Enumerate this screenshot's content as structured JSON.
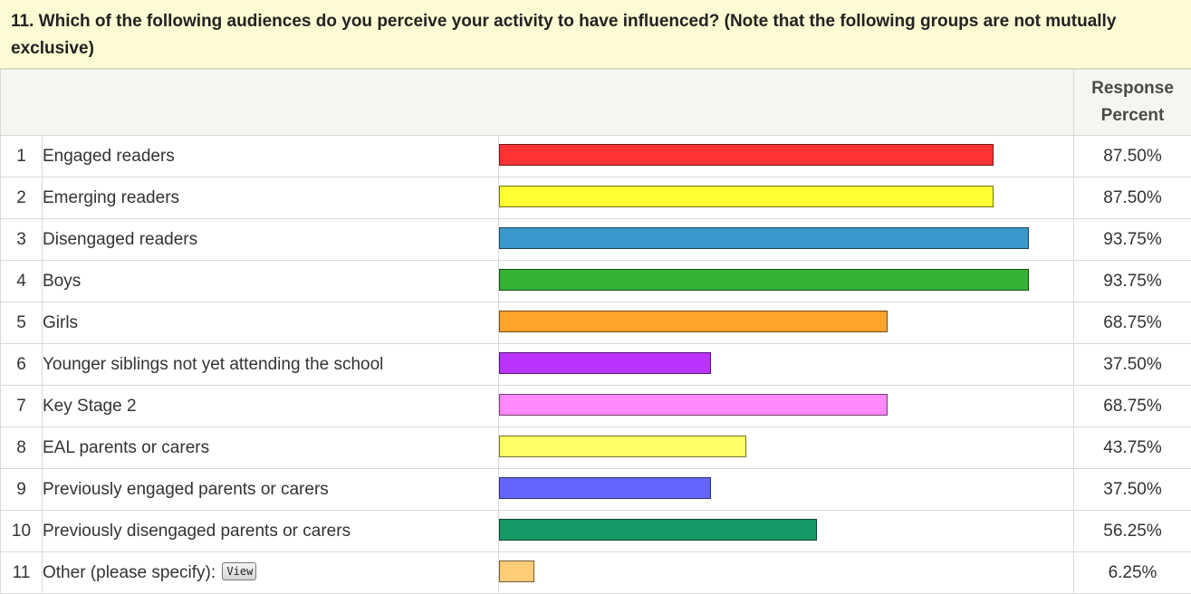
{
  "question": {
    "number": "11.",
    "text": "Which of the following audiences do you perceive your activity to have influenced? (Note that the following groups are not mutually exclusive)"
  },
  "header": {
    "response_percent_line1": "Response",
    "response_percent_line2": "Percent"
  },
  "rows": [
    {
      "index": "1",
      "label": "Engaged readers",
      "percent_text": "87.50%",
      "color": "#ff3333"
    },
    {
      "index": "2",
      "label": "Emerging readers",
      "percent_text": "87.50%",
      "color": "#ffff33"
    },
    {
      "index": "3",
      "label": "Disengaged readers",
      "percent_text": "93.75%",
      "color": "#3a99cc"
    },
    {
      "index": "4",
      "label": "Boys",
      "percent_text": "93.75%",
      "color": "#33b233"
    },
    {
      "index": "5",
      "label": "Girls",
      "percent_text": "68.75%",
      "color": "#ffa42a"
    },
    {
      "index": "6",
      "label": "Younger siblings not yet attending the school",
      "percent_text": "37.50%",
      "color": "#bb33ff"
    },
    {
      "index": "7",
      "label": "Key Stage 2",
      "percent_text": "68.75%",
      "color": "#ff88ff"
    },
    {
      "index": "8",
      "label": "EAL parents or carers",
      "percent_text": "43.75%",
      "color": "#ffff66"
    },
    {
      "index": "9",
      "label": "Previously engaged parents or carers",
      "percent_text": "37.50%",
      "color": "#6666ff"
    },
    {
      "index": "10",
      "label": "Previously disengaged parents or carers",
      "percent_text": "56.25%",
      "color": "#159966"
    },
    {
      "index": "11",
      "label": "Other (please specify):",
      "percent_text": "6.25%",
      "color": "#ffcc77",
      "button_label": "View"
    }
  ],
  "chart_data": {
    "type": "bar",
    "orientation": "horizontal",
    "categories": [
      "Engaged readers",
      "Emerging readers",
      "Disengaged readers",
      "Boys",
      "Girls",
      "Younger siblings not yet attending the school",
      "Key Stage 2",
      "EAL parents or carers",
      "Previously engaged parents or carers",
      "Previously disengaged parents or carers",
      "Other (please specify):"
    ],
    "values": [
      87.5,
      87.5,
      93.75,
      93.75,
      68.75,
      37.5,
      68.75,
      43.75,
      37.5,
      56.25,
      6.25
    ],
    "colors": [
      "#ff3333",
      "#ffff33",
      "#3a99cc",
      "#33b233",
      "#ffa42a",
      "#bb33ff",
      "#ff88ff",
      "#ffff66",
      "#6666ff",
      "#159966",
      "#ffcc77"
    ],
    "title": "",
    "xlabel": "",
    "ylabel": "Response Percent",
    "xlim": [
      0,
      100
    ],
    "grid": false
  }
}
